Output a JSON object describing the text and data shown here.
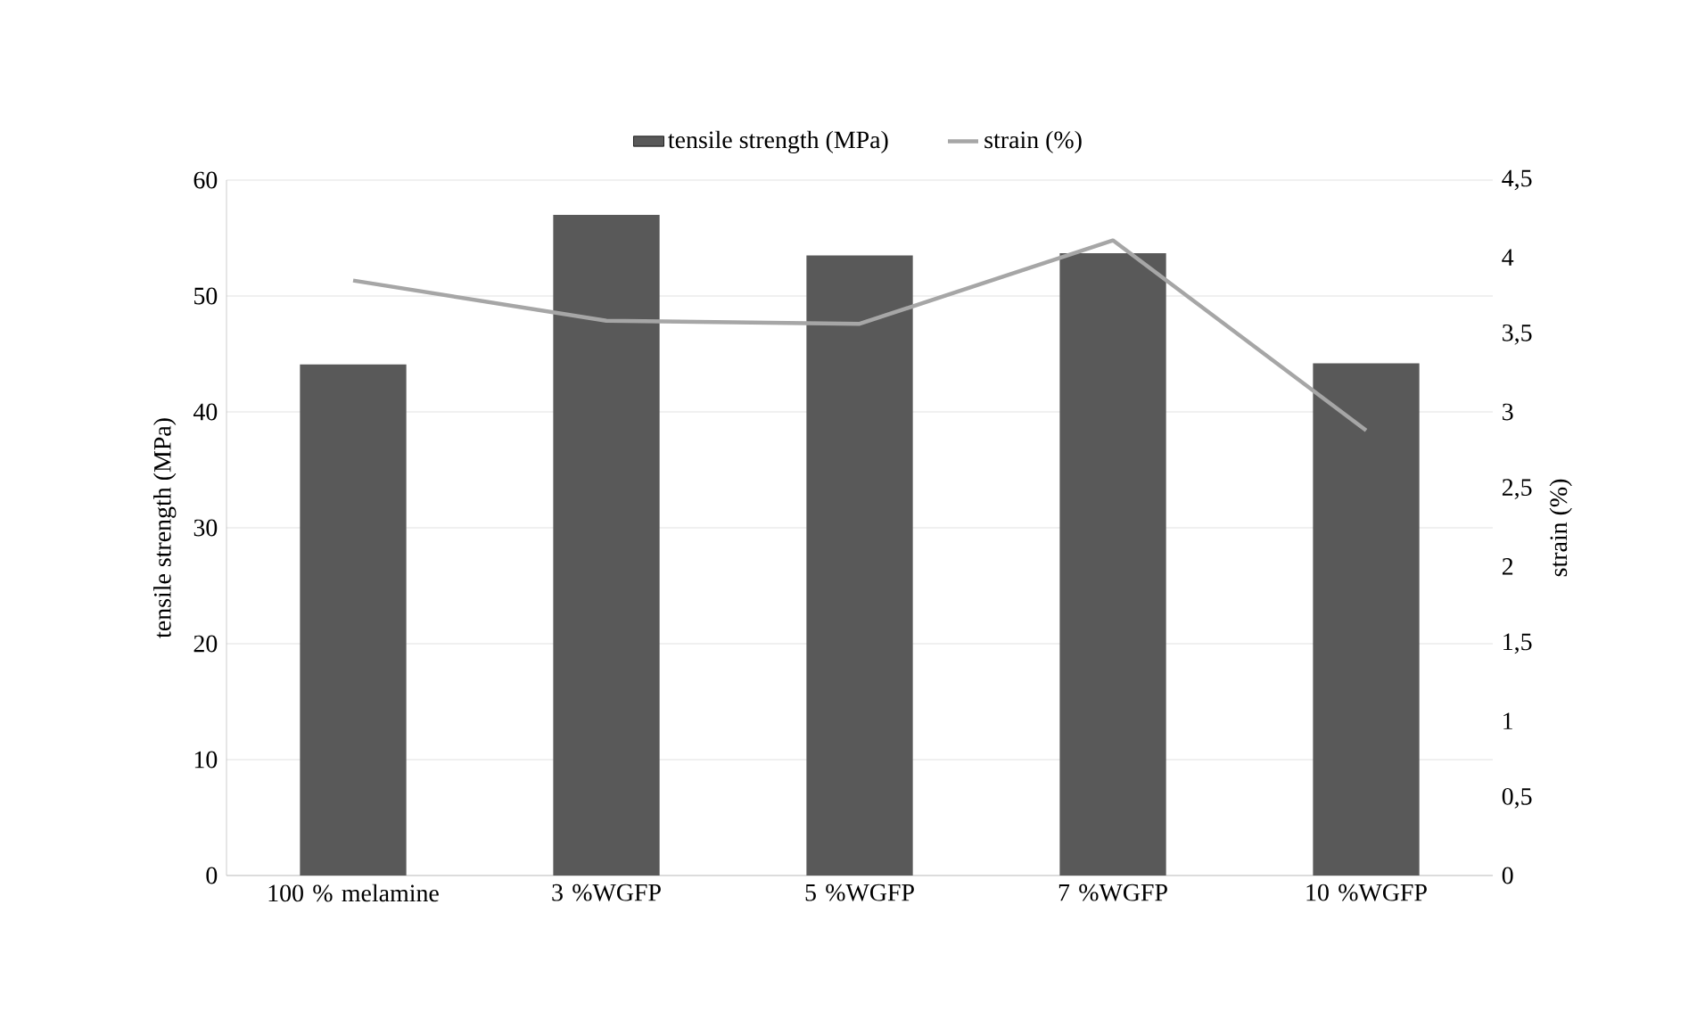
{
  "chart_data": {
    "type": "bar",
    "categories": [
      "100 % melamine",
      "3 %WGFP",
      "5 %WGFP",
      "7 %WGFP",
      "10 %WGFP"
    ],
    "series": [
      {
        "name": "tensile strength (MPa)",
        "color": "#595959",
        "values": [
          44.1,
          57.0,
          53.5,
          53.7,
          44.2
        ]
      },
      {
        "name": "strain (%)",
        "type": "line",
        "axis": "y2",
        "color": "#a6a6a6",
        "values": [
          3.85,
          3.59,
          3.57,
          4.11,
          2.88
        ]
      }
    ],
    "ylabel": "tensile strength (MPa)",
    "y2label": "strain (%)",
    "ylim": [
      0,
      60
    ],
    "yticks": [
      0,
      10,
      20,
      30,
      40,
      50,
      60
    ],
    "y2lim": [
      0,
      4.5
    ],
    "y2ticks": [
      0,
      {
        "value": 0.5,
        "label": "0,5"
      },
      1,
      {
        "value": 1.5,
        "label": "1,5"
      },
      2,
      {
        "value": 2.5,
        "label": "2,5"
      },
      3,
      {
        "value": 3.5,
        "label": "3,5"
      },
      4,
      {
        "value": 4.5,
        "label": "4,5"
      }
    ],
    "grid": "y",
    "legend": "top",
    "marker": "none"
  }
}
